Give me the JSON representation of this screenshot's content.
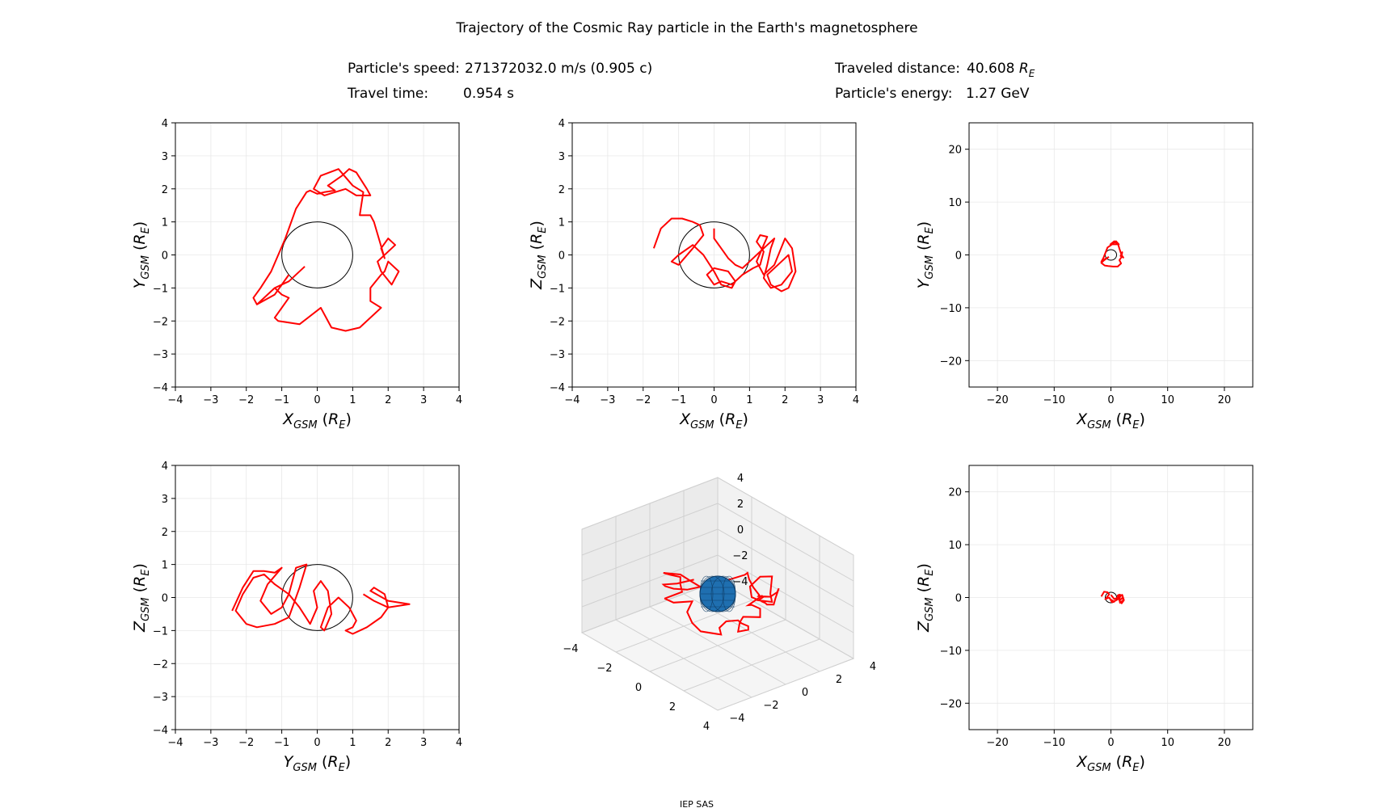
{
  "title": "Trajectory of the Cosmic Ray particle in the Earth's magnetosphere",
  "info": {
    "speed_label": "Particle's speed:",
    "speed_value": "271372032.0 m/s (0.905 c)",
    "time_label": "Travel time:",
    "time_value": "0.954 s",
    "distance_label": "Traveled distance:",
    "distance_value": "40.608",
    "distance_unit_main": "R",
    "distance_unit_sub": "E",
    "energy_label": "Particle's energy:",
    "energy_value": "1.27 GeV"
  },
  "footer": "IEP SAS",
  "colors": {
    "trajectory": "#ff0000",
    "earth_outline": "#000000",
    "earth_fill_3d": "#1f6fb0",
    "grid": "#e8e8e8"
  },
  "chart_data": [
    {
      "type": "line",
      "panel": "xy-zoom",
      "xlabel_main": "X",
      "xlabel_sub": "GSM",
      "xlabel_unit": "(R",
      "xlabel_unit_sub": "E",
      "ylabel_main": "Y",
      "ylabel_sub": "GSM",
      "ylabel_unit": "(R",
      "ylabel_unit_sub": "E",
      "xlim": [
        -4,
        4
      ],
      "ylim": [
        -4,
        4
      ],
      "xticks": [
        -4,
        -3,
        -2,
        -1,
        0,
        1,
        2,
        3,
        4
      ],
      "yticks": [
        -4,
        -3,
        -2,
        -1,
        0,
        1,
        2,
        3,
        4
      ],
      "earth_radius": 1,
      "series": [
        {
          "x": [
            -0.35,
            -0.8,
            -1.2,
            -1.7,
            -1.5,
            -1.2,
            -1.0,
            -0.8,
            -1.2,
            -1.1,
            -0.5,
            0.1,
            0.4,
            0.8,
            1.2,
            1.8,
            1.5,
            1.5,
            1.8,
            1.9,
            2.0,
            2.3,
            2.1,
            1.8,
            1.7,
            2.2,
            2.0,
            1.8,
            1.9,
            1.6,
            1.5,
            1.2,
            1.3,
            1.0,
            0.6,
            0.1,
            -0.1,
            0.2,
            0.8,
            1.1,
            1.5,
            1.4,
            1.1,
            0.9,
            0.7,
            0.3,
            0.5,
            0.2,
            0.0,
            -0.2,
            -0.3,
            -0.6,
            -0.9,
            -1.3,
            -1.6,
            -1.8,
            -1.7,
            -1.2,
            -0.8
          ],
          "y": [
            -0.35,
            -0.8,
            -1.0,
            -1.5,
            -1.3,
            -1.0,
            -1.2,
            -1.3,
            -1.9,
            -2.0,
            -2.1,
            -1.6,
            -2.2,
            -2.3,
            -2.2,
            -1.6,
            -1.4,
            -1.0,
            -0.6,
            -0.5,
            -0.2,
            -0.5,
            -0.9,
            -0.5,
            -0.2,
            0.3,
            0.5,
            0.2,
            -0.1,
            1.0,
            1.2,
            1.2,
            1.9,
            2.1,
            2.6,
            2.4,
            2.0,
            1.8,
            2.0,
            1.8,
            1.8,
            2.0,
            2.5,
            2.6,
            2.4,
            2.1,
            1.95,
            1.9,
            1.85,
            1.95,
            1.9,
            1.4,
            0.5,
            -0.5,
            -1.0,
            -1.3,
            -1.5,
            -1.2,
            -0.6
          ]
        }
      ]
    },
    {
      "type": "line",
      "panel": "xz-zoom",
      "xlabel_main": "X",
      "xlabel_sub": "GSM",
      "xlabel_unit": "(R",
      "xlabel_unit_sub": "E",
      "ylabel_main": "Z",
      "ylabel_sub": "GSM",
      "ylabel_unit": "(R",
      "ylabel_unit_sub": "E",
      "xlim": [
        -4,
        4
      ],
      "ylim": [
        -4,
        4
      ],
      "xticks": [
        -4,
        -3,
        -2,
        -1,
        0,
        1,
        2,
        3,
        4
      ],
      "yticks": [
        -4,
        -3,
        -2,
        -1,
        0,
        1,
        2,
        3,
        4
      ],
      "earth_radius": 1,
      "series": [
        {
          "x": [
            -1.7,
            -1.5,
            -1.2,
            -0.9,
            -0.6,
            -0.4,
            -0.3,
            -0.6,
            -1.0,
            -1.2,
            -1.0,
            -0.6,
            -0.3,
            0.0,
            0.2,
            0.5,
            0.6,
            0.4,
            0.0,
            -0.2,
            0.0,
            0.2,
            0.5,
            0.8,
            1.1,
            1.3,
            1.4,
            1.2,
            1.3,
            1.5,
            1.4,
            1.2,
            1.4,
            1.7,
            2.0,
            2.2,
            2.3,
            2.1,
            1.9,
            1.6,
            1.5,
            1.8,
            2.1,
            2.2,
            1.9,
            1.6,
            1.4,
            1.5,
            1.6,
            1.7,
            1.5,
            1.2,
            1.0,
            0.8,
            0.6,
            0.4,
            0.2,
            0.0,
            0.0
          ],
          "y": [
            0.2,
            0.8,
            1.1,
            1.1,
            1.0,
            0.9,
            0.6,
            0.2,
            -0.3,
            -0.2,
            0.0,
            0.3,
            0.0,
            -0.5,
            -0.9,
            -1.0,
            -0.8,
            -0.5,
            -0.4,
            -0.6,
            -0.9,
            -0.8,
            -0.9,
            -0.6,
            -0.4,
            -0.3,
            0.1,
            0.4,
            0.6,
            0.55,
            0.3,
            -0.2,
            -0.6,
            -0.3,
            0.5,
            0.2,
            -0.5,
            -1.0,
            -1.1,
            -0.9,
            -0.6,
            -0.3,
            0.0,
            -0.5,
            -0.9,
            -1.0,
            -0.7,
            -0.3,
            0.2,
            0.5,
            0.3,
            0.0,
            -0.2,
            -0.4,
            -0.3,
            -0.1,
            0.2,
            0.5,
            0.8
          ]
        }
      ]
    },
    {
      "type": "line",
      "panel": "xy-wide",
      "xlabel_main": "X",
      "xlabel_sub": "GSM",
      "xlabel_unit": "(R",
      "xlabel_unit_sub": "E",
      "ylabel_main": "Y",
      "ylabel_sub": "GSM",
      "ylabel_unit": "(R",
      "ylabel_unit_sub": "E",
      "xlim": [
        -25,
        25
      ],
      "ylim": [
        -25,
        25
      ],
      "xticks": [
        -20,
        -10,
        0,
        10,
        20
      ],
      "yticks": [
        -20,
        -10,
        0,
        10,
        20
      ],
      "earth_radius": 1,
      "series": [
        {
          "x": [
            -0.35,
            -1.2,
            -1.7,
            -1.1,
            -0.5,
            0.4,
            1.2,
            1.8,
            1.5,
            2.0,
            2.2,
            1.7,
            2.0,
            1.9,
            1.5,
            1.3,
            0.6,
            -0.1,
            0.8,
            1.4,
            0.9,
            0.3,
            0.0,
            -0.6,
            -1.3,
            -1.7,
            -0.8
          ],
          "y": [
            -0.35,
            -1.0,
            -1.5,
            -2.0,
            -2.1,
            -2.2,
            -2.2,
            -1.6,
            -1.0,
            -0.2,
            -0.5,
            -0.2,
            0.5,
            -0.1,
            1.2,
            1.9,
            2.6,
            2.0,
            2.0,
            2.0,
            2.6,
            2.1,
            1.85,
            1.4,
            -0.5,
            -1.3,
            -0.6
          ]
        }
      ]
    },
    {
      "type": "line",
      "panel": "yz-zoom",
      "xlabel_main": "Y",
      "xlabel_sub": "GSM",
      "xlabel_unit": "(R",
      "xlabel_unit_sub": "E",
      "ylabel_main": "Z",
      "ylabel_sub": "GSM",
      "ylabel_unit": "(R",
      "ylabel_unit_sub": "E",
      "xlim": [
        -4,
        4
      ],
      "ylim": [
        -4,
        4
      ],
      "xticks": [
        -4,
        -3,
        -2,
        -1,
        0,
        1,
        2,
        3,
        4
      ],
      "yticks": [
        -4,
        -3,
        -2,
        -1,
        0,
        1,
        2,
        3,
        4
      ],
      "earth_radius": 1,
      "series": [
        {
          "x": [
            -2.4,
            -2.1,
            -1.8,
            -1.5,
            -1.2,
            -1.0,
            -1.4,
            -1.6,
            -1.3,
            -1.0,
            -0.8,
            -0.6,
            -0.3,
            -0.5,
            -0.8,
            -1.2,
            -1.7,
            -2.0,
            -2.3,
            -2.1,
            -1.8,
            -1.5,
            -1.2,
            -0.8,
            -0.5,
            -0.2,
            0.0,
            -0.1,
            0.1,
            0.3,
            0.4,
            0.2,
            0.1,
            0.3,
            0.6,
            0.9,
            1.1,
            1.0,
            0.8,
            1.0,
            1.4,
            1.8,
            2.0,
            1.9,
            1.6,
            1.5,
            2.0,
            2.6,
            2.0,
            1.6,
            1.3
          ],
          "y": [
            -0.4,
            0.3,
            0.8,
            0.8,
            0.75,
            0.9,
            0.4,
            -0.1,
            -0.5,
            -0.3,
            0.1,
            0.9,
            1.0,
            0.3,
            -0.6,
            -0.8,
            -0.9,
            -0.8,
            -0.4,
            0.1,
            0.6,
            0.7,
            0.4,
            0.1,
            -0.3,
            -0.8,
            -0.3,
            0.2,
            0.5,
            0.2,
            -0.5,
            -1.0,
            -0.9,
            -0.3,
            0.0,
            -0.3,
            -0.7,
            -0.9,
            -1.0,
            -1.1,
            -0.9,
            -0.6,
            -0.3,
            0.1,
            0.3,
            0.2,
            -0.1,
            -0.2,
            -0.3,
            -0.1,
            0.1
          ]
        }
      ]
    },
    {
      "type": "line",
      "panel": "3d",
      "xticks": [
        -4,
        -2,
        0,
        2,
        4
      ],
      "yticks": [
        -4,
        -2,
        0,
        2,
        4
      ],
      "zticks": [
        -4,
        -2,
        0,
        2,
        4
      ],
      "earth_radius": 1
    },
    {
      "type": "line",
      "panel": "xz-wide",
      "xlabel_main": "X",
      "xlabel_sub": "GSM",
      "xlabel_unit": "(R",
      "xlabel_unit_sub": "E",
      "ylabel_main": "Z",
      "ylabel_sub": "GSM",
      "ylabel_unit": "(R",
      "ylabel_unit_sub": "E",
      "xlim": [
        -25,
        25
      ],
      "ylim": [
        -25,
        25
      ],
      "xticks": [
        -20,
        -10,
        0,
        10,
        20
      ],
      "yticks": [
        -20,
        -10,
        0,
        10,
        20
      ],
      "earth_radius": 1,
      "series": [
        {
          "x": [
            -1.7,
            -1.2,
            -0.6,
            -0.3,
            -1.0,
            -0.3,
            0.2,
            0.6,
            0.0,
            0.2,
            0.8,
            1.3,
            1.2,
            1.5,
            1.2,
            2.0,
            2.3,
            1.9,
            1.5,
            2.1,
            2.2,
            1.6,
            1.5,
            1.7,
            1.2,
            0.6,
            0.0
          ],
          "y": [
            0.2,
            1.1,
            1.0,
            0.6,
            -0.3,
            0.0,
            -0.9,
            -0.8,
            -0.4,
            -0.9,
            -0.6,
            -0.3,
            0.4,
            0.55,
            -0.2,
            0.5,
            -0.5,
            -1.1,
            -0.6,
            0.0,
            -0.5,
            -1.0,
            -0.3,
            0.5,
            0.0,
            -0.3,
            0.5
          ]
        }
      ]
    }
  ]
}
